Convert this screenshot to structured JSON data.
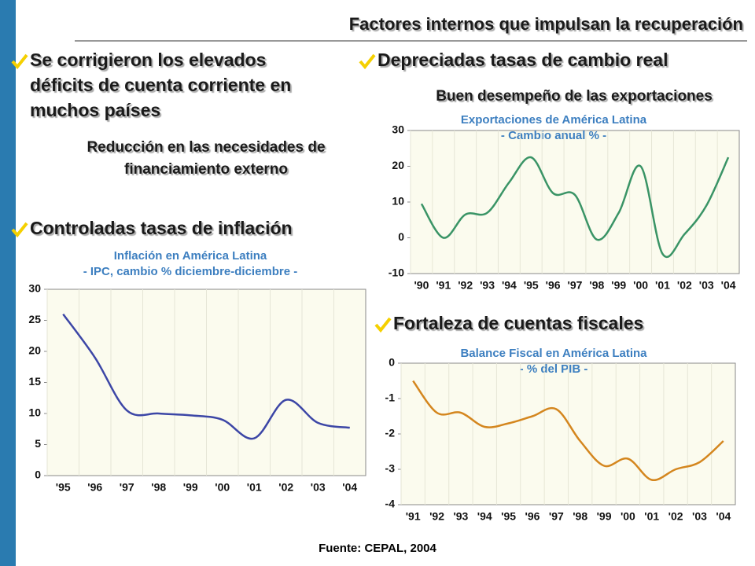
{
  "header": {
    "title": "Factores internos que impulsan la recuperación"
  },
  "points": [
    {
      "lines": [
        "Se corrigieron los elevados",
        "déficits de cuenta corriente en",
        "muchos países"
      ],
      "note": [
        "Reducción en las necesidades de",
        "financiamiento externo"
      ]
    },
    {
      "lines": [
        "Controladas tasas de inflación"
      ]
    },
    {
      "lines": [
        "Depreciadas tasas de cambio real"
      ],
      "note": [
        "Buen desempeño de las exportaciones"
      ]
    },
    {
      "lines": [
        "Fortaleza de cuentas fiscales"
      ]
    }
  ],
  "source": "Fuente: CEPAL, 2004",
  "chart_data": [
    {
      "type": "line",
      "title": "Inflación en América Latina",
      "subtitle": "- IPC, cambio % diciembre-diciembre -",
      "categories": [
        "'95",
        "'96",
        "'97",
        "'98",
        "'99",
        "'00",
        "'01",
        "'02",
        "'03",
        "'04"
      ],
      "values": [
        26,
        19,
        10.5,
        10,
        9.7,
        9,
        6,
        12.2,
        8.5,
        7.7
      ],
      "color": "#3c46a6",
      "ylim": [
        0,
        30
      ],
      "yticks": [
        0,
        5,
        10,
        15,
        20,
        25,
        30
      ],
      "grid": false
    },
    {
      "type": "line",
      "title": "Exportaciones de América Latina",
      "subtitle": "- Cambio anual % -",
      "categories": [
        "'90",
        "'91",
        "'92",
        "'93",
        "'94",
        "'95",
        "'96",
        "'97",
        "'98",
        "'99",
        "'00",
        "'01",
        "'02",
        "'03",
        "'04"
      ],
      "values": [
        9.5,
        0,
        6.5,
        7,
        15.5,
        22.5,
        12.5,
        12,
        -0.5,
        7,
        20,
        -4.5,
        1,
        9,
        22.5
      ],
      "color": "#3a9466",
      "ylim": [
        -10,
        30
      ],
      "yticks": [
        -10,
        0,
        10,
        20,
        30
      ],
      "grid": false
    },
    {
      "type": "line",
      "title": "Balance Fiscal en América Latina",
      "subtitle": "- % del PIB -",
      "categories": [
        "'91",
        "'92",
        "'93",
        "'94",
        "'95",
        "'96",
        "'97",
        "'98",
        "'99",
        "'00",
        "'01",
        "'02",
        "'03",
        "'04"
      ],
      "values": [
        -0.5,
        -1.4,
        -1.4,
        -1.8,
        -1.7,
        -1.5,
        -1.3,
        -2.2,
        -2.9,
        -2.7,
        -3.3,
        -3.0,
        -2.8,
        -2.2
      ],
      "color": "#d4861e",
      "ylim": [
        -4,
        0
      ],
      "yticks": [
        0,
        -1,
        -2,
        -3,
        -4
      ],
      "grid": false
    }
  ]
}
